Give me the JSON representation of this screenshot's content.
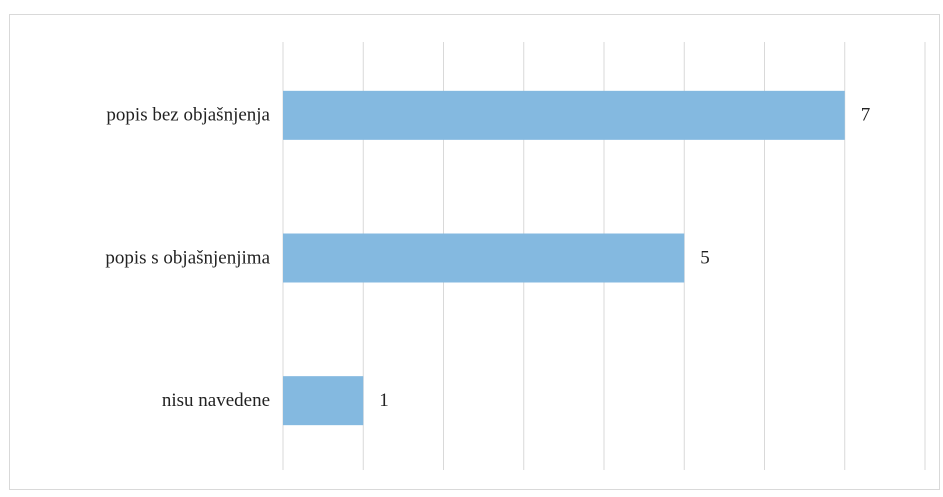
{
  "chart_data": {
    "type": "bar",
    "orientation": "horizontal",
    "categories": [
      "popis bez objašnjenja",
      "popis s objašnjenjima",
      "nisu navedene"
    ],
    "values": [
      7,
      5,
      1
    ],
    "color": "#84b9e0",
    "xlim": [
      0,
      8
    ],
    "xticks": [
      0,
      1,
      2,
      3,
      4,
      5,
      6,
      7,
      8
    ],
    "grid": true
  }
}
